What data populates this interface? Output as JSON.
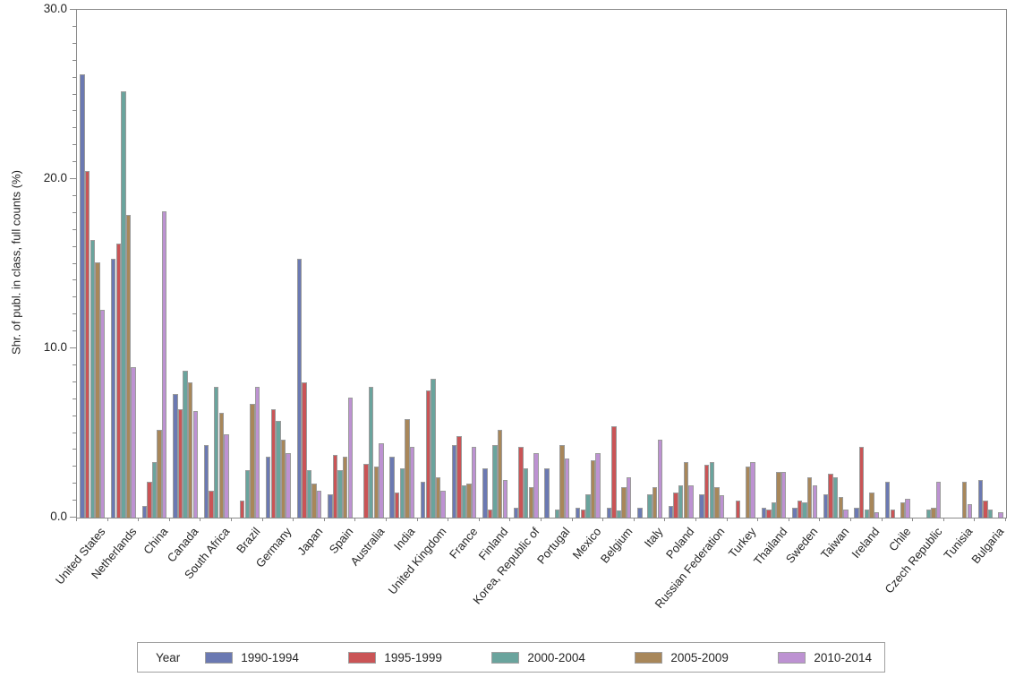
{
  "chart_data": {
    "type": "bar",
    "title": "",
    "xlabel": "",
    "ylabel": "Shr. of publ. in class, full counts (%)",
    "ylim": [
      0,
      30
    ],
    "yticks": [
      0,
      10,
      20,
      30
    ],
    "ytick_labels": [
      "0.0",
      "10.0",
      "20.0",
      "30.0"
    ],
    "minor_tick_step": 1,
    "grid": false,
    "legend_title": "Year",
    "legend_position": "bottom",
    "axis_color": "#8a8a8a",
    "bar_border_color": "#9b9b9b",
    "text_color": "#262626",
    "categories": [
      "United States",
      "Netherlands",
      "China",
      "Canada",
      "South Africa",
      "Brazil",
      "Germany",
      "Japan",
      "Spain",
      "Australia",
      "India",
      "United Kingdom",
      "France",
      "Finland",
      "Korea, Republic of",
      "Portugal",
      "Mexico",
      "Belgium",
      "Italy",
      "Poland",
      "Russian Federation",
      "Turkey",
      "Thailand",
      "Sweden",
      "Taiwan",
      "Ireland",
      "Chile",
      "Czech Republic",
      "Tunisia",
      "Bulgaria"
    ],
    "series": [
      {
        "name": "1990-1994",
        "color": "#6b79b2",
        "values": [
          26.2,
          15.3,
          0.7,
          7.3,
          4.3,
          0,
          3.6,
          15.3,
          1.4,
          0,
          3.6,
          2.1,
          4.3,
          2.9,
          0.6,
          2.9,
          0.6,
          0.6,
          0.6,
          0.7,
          1.4,
          0,
          0.6,
          0.6,
          1.4,
          0.6,
          2.1,
          0,
          0,
          2.2
        ]
      },
      {
        "name": "1995-1999",
        "color": "#ca5456",
        "values": [
          20.5,
          16.2,
          2.1,
          6.4,
          1.6,
          1.0,
          6.4,
          8.0,
          3.7,
          3.2,
          1.5,
          7.5,
          4.8,
          0.5,
          4.2,
          0,
          0.5,
          5.4,
          0,
          1.5,
          3.1,
          1.0,
          0.5,
          1.0,
          2.6,
          4.2,
          0.5,
          0,
          0,
          1.0
        ]
      },
      {
        "name": "2000-2004",
        "color": "#6aa49d",
        "values": [
          16.4,
          25.2,
          3.3,
          8.7,
          7.7,
          2.8,
          5.7,
          2.8,
          2.8,
          7.7,
          2.9,
          8.2,
          1.9,
          4.3,
          2.9,
          0.5,
          1.4,
          0.4,
          1.4,
          1.9,
          3.3,
          0,
          0.9,
          0.9,
          2.4,
          0.5,
          0,
          0.5,
          0,
          0.5
        ]
      },
      {
        "name": "2005-2009",
        "color": "#a8875a",
        "values": [
          15.1,
          17.9,
          5.2,
          8.0,
          6.2,
          6.7,
          4.6,
          2.0,
          3.6,
          3.0,
          5.8,
          2.4,
          2.0,
          5.2,
          1.8,
          4.3,
          3.4,
          1.8,
          1.8,
          3.3,
          1.8,
          3.0,
          2.7,
          2.4,
          1.2,
          1.5,
          0.9,
          0.6,
          2.1,
          0
        ]
      },
      {
        "name": "2010-2014",
        "color": "#bd92d2",
        "values": [
          12.3,
          8.9,
          18.1,
          6.3,
          4.9,
          7.7,
          3.8,
          1.6,
          7.1,
          4.4,
          4.2,
          1.6,
          4.2,
          2.2,
          3.8,
          3.5,
          3.8,
          2.4,
          4.6,
          1.9,
          1.3,
          3.3,
          2.7,
          1.9,
          0.5,
          0.3,
          1.1,
          2.1,
          0.8,
          0.3
        ]
      }
    ]
  }
}
